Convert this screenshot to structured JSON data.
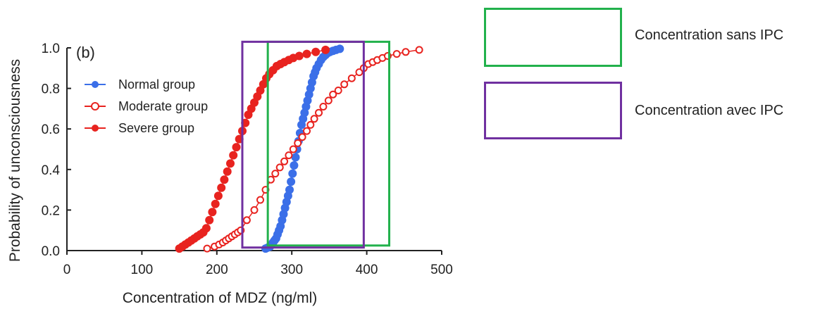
{
  "chart_data": {
    "type": "scatter",
    "panel_label": "(b)",
    "xlabel": "Concentration of MDZ (ng/ml)",
    "ylabel": "Probability of unconsciousness",
    "xlim": [
      0,
      500
    ],
    "ylim": [
      0,
      1.0
    ],
    "xticks": [
      "0",
      "100",
      "200",
      "300",
      "400",
      "500"
    ],
    "yticks": [
      "0.0",
      "0.2",
      "0.4",
      "0.6",
      "0.8",
      "1.0"
    ],
    "grid": false,
    "legend_position": "top-left",
    "series": [
      {
        "name": "Normal group",
        "color": "#3b6fe8",
        "marker": "filled-circle",
        "x": [
          265,
          268,
          271,
          273,
          275,
          277,
          279,
          281,
          283,
          285,
          287,
          289,
          291,
          293,
          295,
          297,
          299,
          301,
          303,
          305,
          307,
          309,
          311,
          313,
          315,
          317,
          319,
          321,
          323,
          325,
          327,
          329,
          331,
          333,
          336,
          339,
          342,
          345,
          348,
          351,
          355,
          359,
          364
        ],
        "y": [
          0.01,
          0.015,
          0.02,
          0.03,
          0.04,
          0.05,
          0.06,
          0.08,
          0.1,
          0.12,
          0.15,
          0.18,
          0.21,
          0.24,
          0.27,
          0.3,
          0.34,
          0.38,
          0.42,
          0.46,
          0.5,
          0.54,
          0.58,
          0.62,
          0.65,
          0.68,
          0.71,
          0.74,
          0.77,
          0.8,
          0.83,
          0.86,
          0.88,
          0.9,
          0.92,
          0.94,
          0.955,
          0.965,
          0.975,
          0.98,
          0.985,
          0.99,
          0.995
        ]
      },
      {
        "name": "Moderate group",
        "color": "#e8231f",
        "marker": "open-circle",
        "x": [
          187,
          197,
          203,
          208,
          212,
          216,
          220,
          224,
          228,
          232,
          240,
          250,
          258,
          265,
          272,
          278,
          284,
          290,
          296,
          302,
          308,
          314,
          320,
          325,
          330,
          336,
          342,
          349,
          355,
          362,
          370,
          380,
          390,
          396,
          402,
          408,
          414,
          421,
          428,
          440,
          452,
          470
        ],
        "y": [
          0.01,
          0.02,
          0.03,
          0.04,
          0.05,
          0.06,
          0.07,
          0.08,
          0.09,
          0.1,
          0.15,
          0.2,
          0.25,
          0.3,
          0.35,
          0.38,
          0.41,
          0.44,
          0.47,
          0.5,
          0.53,
          0.56,
          0.59,
          0.62,
          0.65,
          0.68,
          0.71,
          0.74,
          0.77,
          0.79,
          0.82,
          0.85,
          0.88,
          0.9,
          0.92,
          0.93,
          0.94,
          0.95,
          0.96,
          0.97,
          0.98,
          0.99
        ]
      },
      {
        "name": "Severe group",
        "color": "#e8231f",
        "marker": "filled-circle",
        "x": [
          150,
          154,
          158,
          162,
          166,
          170,
          174,
          178,
          182,
          186,
          190,
          194,
          198,
          202,
          206,
          210,
          214,
          218,
          222,
          226,
          230,
          234,
          238,
          242,
          246,
          250,
          254,
          258,
          262,
          266,
          270,
          275,
          280,
          285,
          290,
          296,
          302,
          310,
          320,
          332,
          345
        ],
        "y": [
          0.01,
          0.02,
          0.03,
          0.04,
          0.05,
          0.06,
          0.07,
          0.08,
          0.09,
          0.11,
          0.15,
          0.19,
          0.23,
          0.27,
          0.31,
          0.35,
          0.39,
          0.43,
          0.47,
          0.51,
          0.55,
          0.59,
          0.63,
          0.67,
          0.7,
          0.73,
          0.76,
          0.79,
          0.82,
          0.85,
          0.87,
          0.89,
          0.91,
          0.92,
          0.93,
          0.94,
          0.95,
          0.96,
          0.97,
          0.98,
          0.99
        ]
      }
    ],
    "annotations": [
      {
        "name": "Concentration sans IPC",
        "color": "#22b14c",
        "x_range": [
          268,
          430
        ],
        "y_range": [
          0.025,
          1.03
        ]
      },
      {
        "name": "Concentration avec IPC",
        "color": "#7030a0",
        "x_range": [
          234,
          396
        ],
        "y_range": [
          0.015,
          1.03
        ]
      }
    ]
  },
  "key": {
    "green_label": "Concentration sans IPC",
    "purple_label": "Concentration avec IPC",
    "green_color": "#22b14c",
    "purple_color": "#7030a0"
  }
}
